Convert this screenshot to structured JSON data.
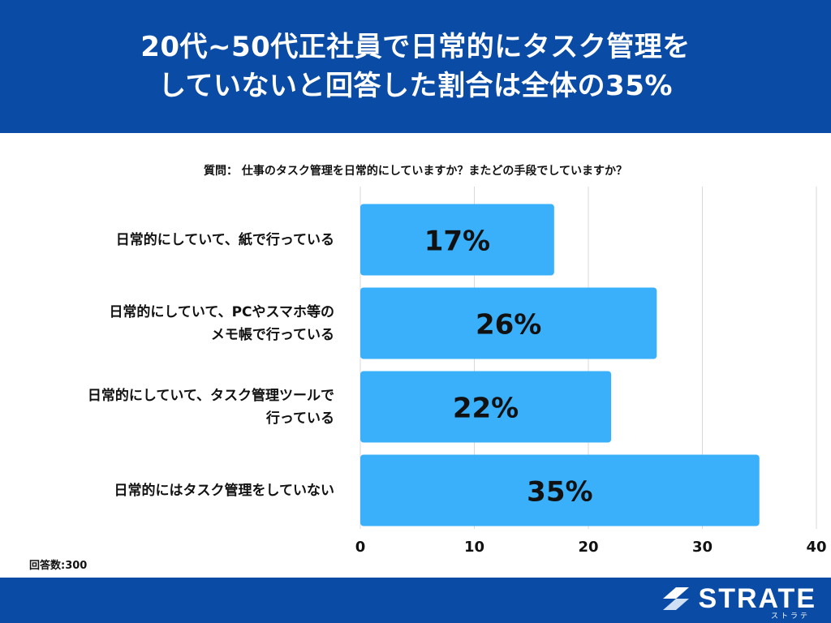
{
  "header": {
    "title_line1": "20代~50代正社員で日常的にタスク管理を",
    "title_line2": "していないと回答した割合は全体の35%"
  },
  "question": "質問： 仕事のタスク管理を日常的にしていますか？またどの手段でしていますか？",
  "footer": {
    "respondents": "回答数:300",
    "logo_text": "STRATE",
    "logo_sub": "ストラテ"
  },
  "colors": {
    "header_bg": "#0a4ba6",
    "bar": "#3ab0fb",
    "grid": "#d9d9d9"
  },
  "chart_data": {
    "type": "bar",
    "orientation": "horizontal",
    "categories": [
      [
        "日常的にしていて、紙で行っている"
      ],
      [
        "日常的にしていて、PCやスマホ等の",
        "メモ帳で行っている"
      ],
      [
        "日常的にしていて、タスク管理ツールで",
        "行っている"
      ],
      [
        "日常的にはタスク管理をしていない"
      ]
    ],
    "values": [
      17,
      26,
      22,
      35
    ],
    "data_labels": [
      "17%",
      "26%",
      "22%",
      "35%"
    ],
    "xlim": [
      0,
      40
    ],
    "xticks": [
      0,
      10,
      20,
      30,
      40
    ],
    "grid": true
  }
}
